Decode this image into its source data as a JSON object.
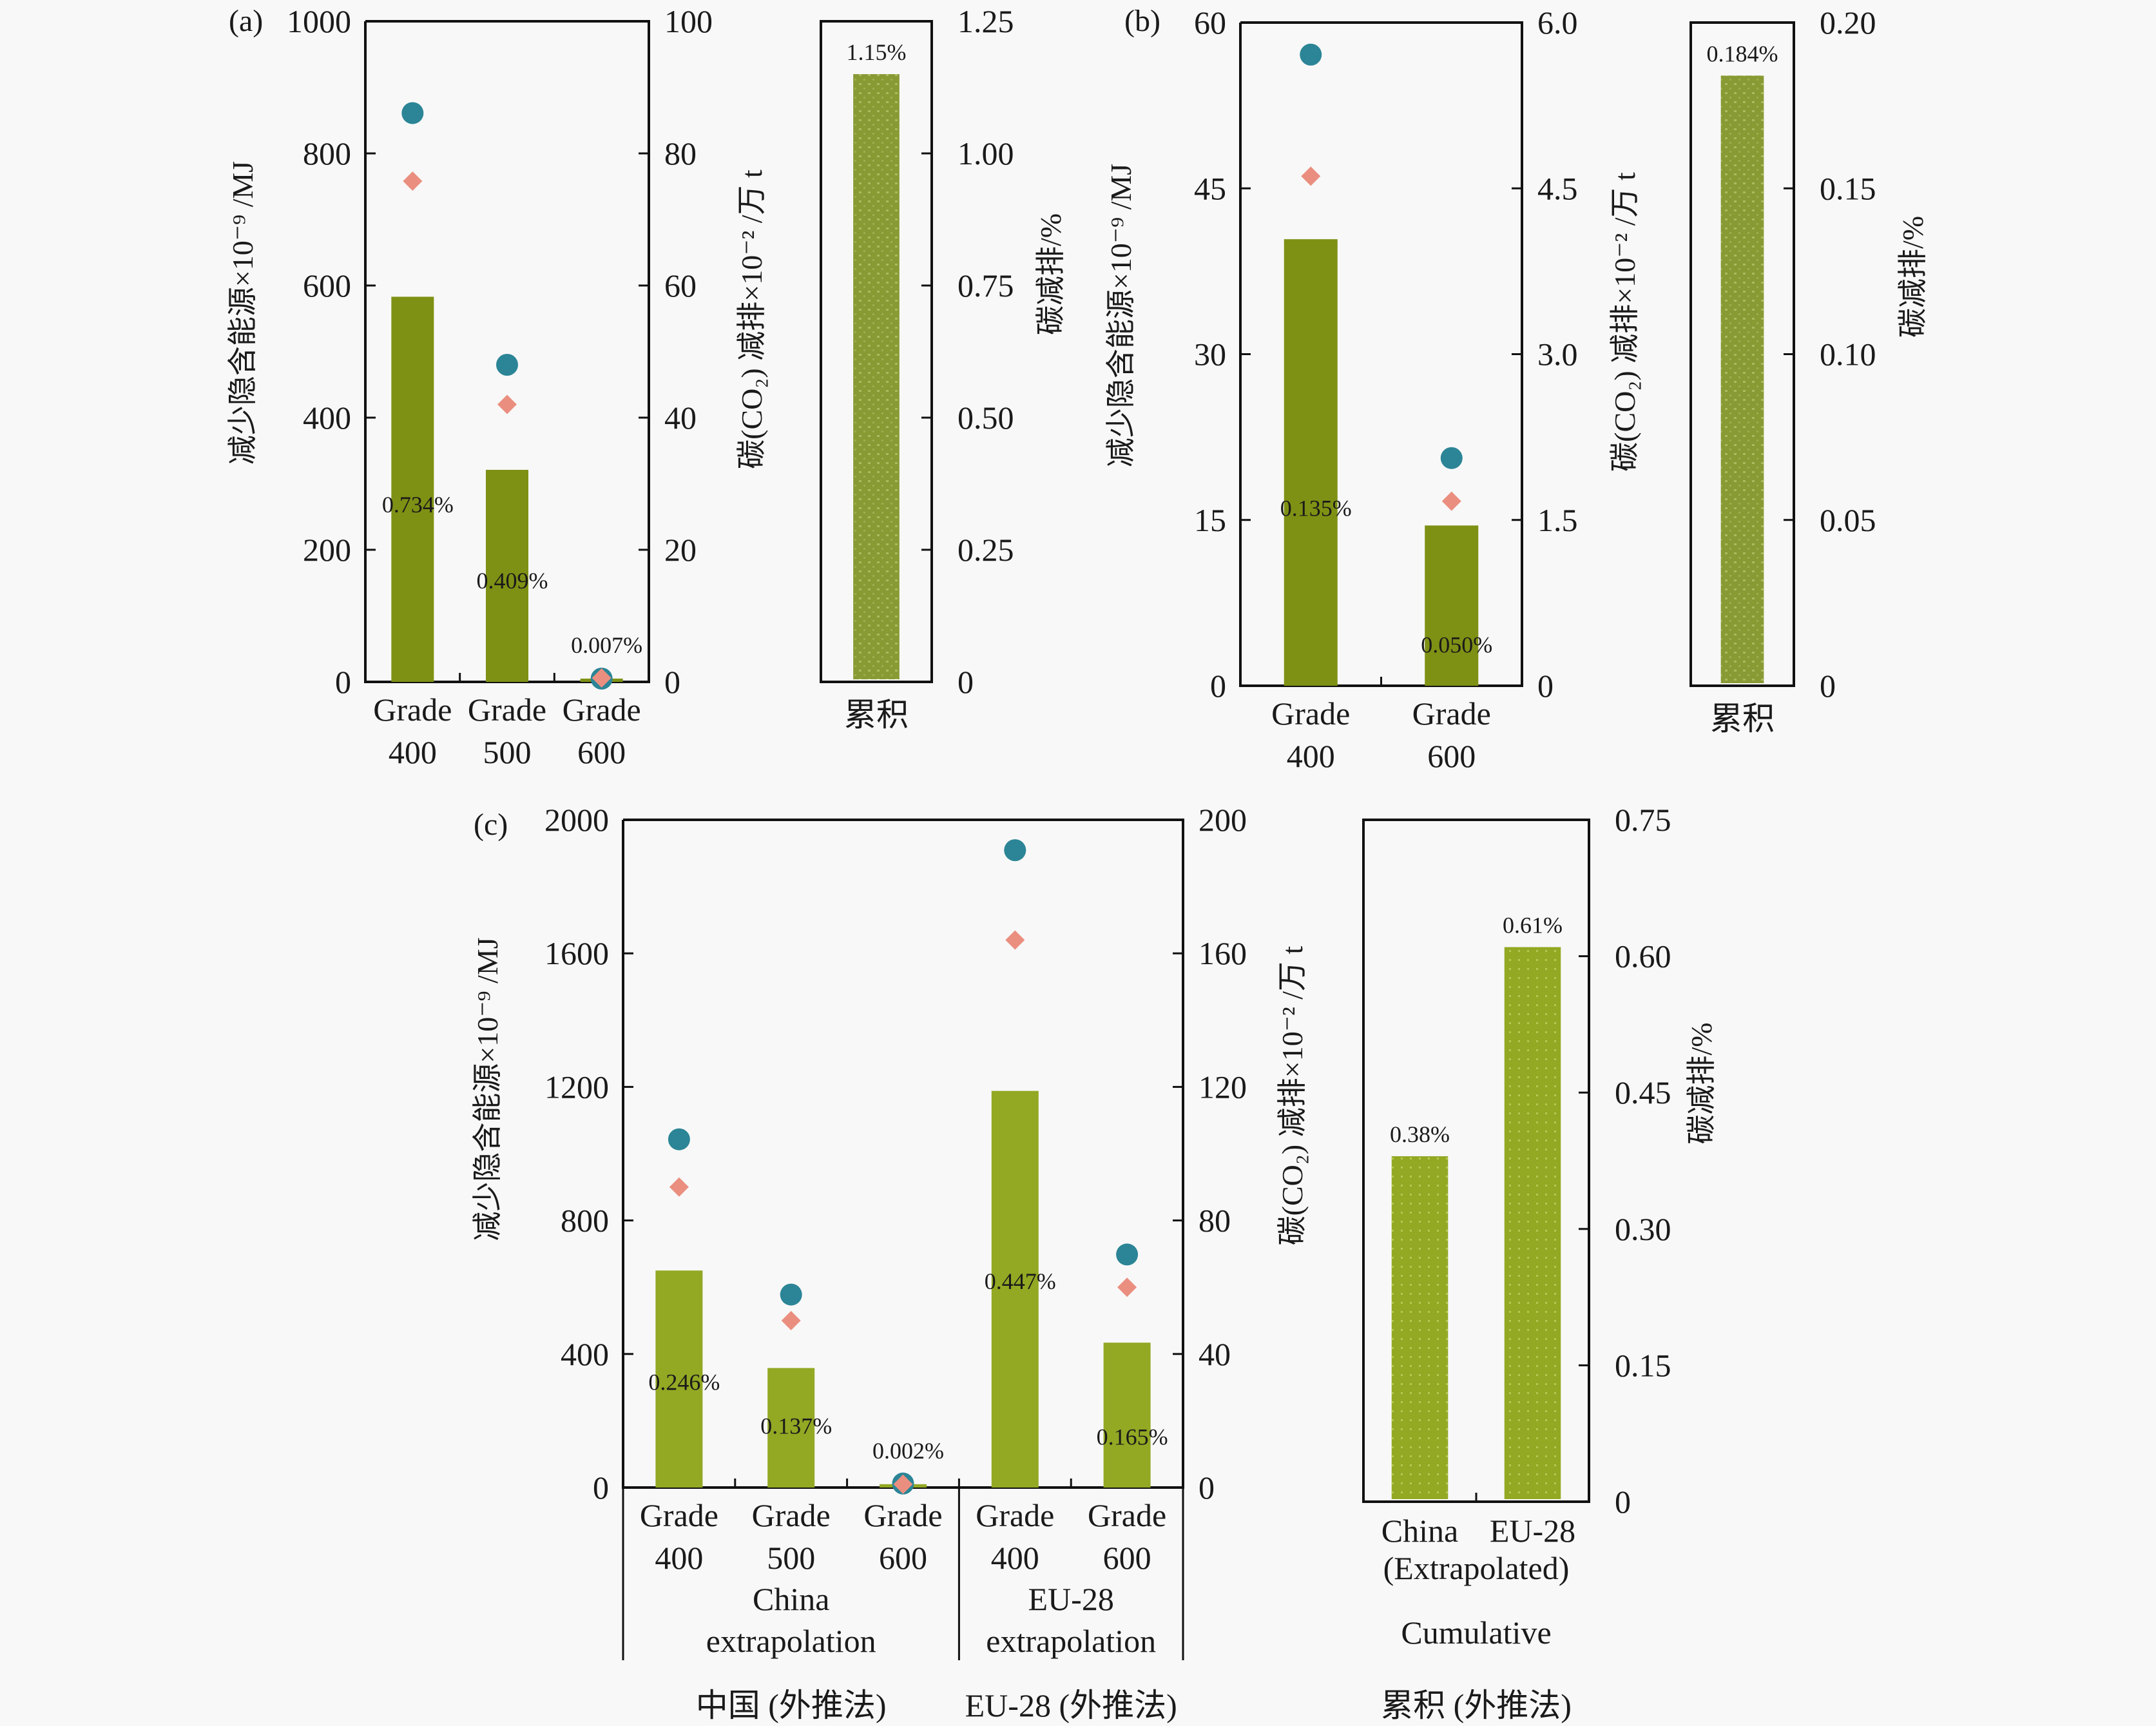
{
  "colors": {
    "bar": "#7f9114",
    "bar_c": "#93a823",
    "cumulative_bar": "#889a33",
    "cumulative_dot": "#b3c26a",
    "energy_marker": "#2b8596",
    "co2_marker": "#ea8f80",
    "background": "#f8f8f8"
  },
  "chart_data": [
    {
      "id": "a",
      "panel_label": "(a)",
      "type": "bar",
      "categories": [
        [
          "Grade",
          "400"
        ],
        [
          "Grade",
          "500"
        ],
        [
          "Grade",
          "600"
        ]
      ],
      "ylabel_left": "减少隐含能源×10⁻⁹ /MJ",
      "ylabel_right": "碳(CO₂) 减排×10⁻² /万 t",
      "ylim_left": [
        0,
        1000
      ],
      "yticks_left": [
        "0",
        "200",
        "400",
        "600",
        "800",
        "1000"
      ],
      "ylim_right": [
        0,
        100
      ],
      "yticks_right": [
        "0",
        "20",
        "40",
        "60",
        "80",
        "100"
      ],
      "series": [
        {
          "name": "bar (left axis)",
          "kind": "bar",
          "axis": "left",
          "values": [
            583,
            321,
            5
          ]
        },
        {
          "name": "circle (left axis)",
          "kind": "circle",
          "axis": "left",
          "values": [
            861,
            480,
            5
          ]
        },
        {
          "name": "diamond (right axis)",
          "kind": "diamond",
          "axis": "right",
          "values": [
            75.8,
            42,
            0.6
          ]
        }
      ],
      "bar_labels": [
        "0.734%",
        "0.409%",
        "0.007%"
      ],
      "cumulative": {
        "category": "累积",
        "values": [
          1.15
        ],
        "labels": [
          "1.15%"
        ],
        "ylim": [
          0,
          1.25
        ],
        "yticks": [
          "0",
          "0.25",
          "0.50",
          "0.75",
          "1.00",
          "1.25"
        ],
        "ylabel": "碳减排/%"
      }
    },
    {
      "id": "b",
      "panel_label": "(b)",
      "type": "bar",
      "categories": [
        [
          "Grade",
          "400"
        ],
        [
          "Grade",
          "600"
        ]
      ],
      "ylabel_left": "减少隐含能源×10⁻⁹ /MJ",
      "ylabel_right": "碳(CO₂) 减排×10⁻² /万 t",
      "ylim_left": [
        0,
        60
      ],
      "yticks_left": [
        "0",
        "15",
        "30",
        "45",
        "60"
      ],
      "ylim_right": [
        0,
        6.0
      ],
      "yticks_right": [
        "0",
        "1.5",
        "3.0",
        "4.5",
        "6.0"
      ],
      "series": [
        {
          "name": "bar (left axis)",
          "kind": "bar",
          "axis": "left",
          "values": [
            40.4,
            14.5
          ]
        },
        {
          "name": "circle (left axis)",
          "kind": "circle",
          "axis": "left",
          "values": [
            57.1,
            20.6
          ]
        },
        {
          "name": "diamond (right axis)",
          "kind": "diamond",
          "axis": "right",
          "values": [
            4.61,
            1.67
          ]
        }
      ],
      "bar_labels": [
        "0.135%",
        "0.050%"
      ],
      "cumulative": {
        "category": "累积",
        "values": [
          0.184
        ],
        "labels": [
          "0.184%"
        ],
        "ylim": [
          0,
          0.2
        ],
        "yticks": [
          "0",
          "0.05",
          "0.10",
          "0.15",
          "0.20"
        ],
        "ylabel": "碳减排/%"
      }
    },
    {
      "id": "c",
      "panel_label": "(c)",
      "type": "bar",
      "categories": [
        [
          "Grade",
          "400"
        ],
        [
          "Grade",
          "500"
        ],
        [
          "Grade",
          "600"
        ],
        [
          "Grade",
          "400"
        ],
        [
          "Grade",
          "600"
        ]
      ],
      "groups": [
        {
          "label_en": [
            "China",
            "extrapolation"
          ],
          "label_zh": "中国 (外推法)",
          "count": 3
        },
        {
          "label_en": [
            "EU-28",
            "extrapolation"
          ],
          "label_zh": "EU-28 (外推法)",
          "count": 2
        }
      ],
      "ylabel_left": "减少隐含能源×10⁻⁹ /MJ",
      "ylabel_right": "碳(CO₂) 减排×10⁻² /万 t",
      "ylim_left": [
        0,
        2000
      ],
      "yticks_left": [
        "0",
        "400",
        "800",
        "1200",
        "1600",
        "2000"
      ],
      "ylim_right": [
        0,
        200
      ],
      "yticks_right": [
        "0",
        "40",
        "80",
        "120",
        "160",
        "200"
      ],
      "series": [
        {
          "name": "bar (left axis)",
          "kind": "bar",
          "axis": "left",
          "values": [
            650,
            358,
            10,
            1188,
            434
          ]
        },
        {
          "name": "circle (left axis)",
          "kind": "circle",
          "axis": "left",
          "values": [
            1043,
            578,
            12,
            1909,
            698
          ]
        },
        {
          "name": "diamond (right axis)",
          "kind": "diamond",
          "axis": "right",
          "values": [
            90,
            50,
            1,
            164,
            60
          ]
        }
      ],
      "bar_labels": [
        "0.246%",
        "0.137%",
        "0.002%",
        "0.447%",
        "0.165%"
      ],
      "cumulative": {
        "categories": [
          [
            "China",
            "(Extrapolated)"
          ],
          [
            "EU-28",
            ""
          ]
        ],
        "values": [
          0.38,
          0.61
        ],
        "labels": [
          "0.38%",
          "0.61%"
        ],
        "ylim": [
          0,
          0.75
        ],
        "yticks": [
          "0",
          "0.15",
          "0.30",
          "0.45",
          "0.60",
          "0.75"
        ],
        "ylabel": "碳减排/%",
        "title_en": "Cumulative",
        "title_zh": "累积 (外推法)"
      }
    }
  ]
}
